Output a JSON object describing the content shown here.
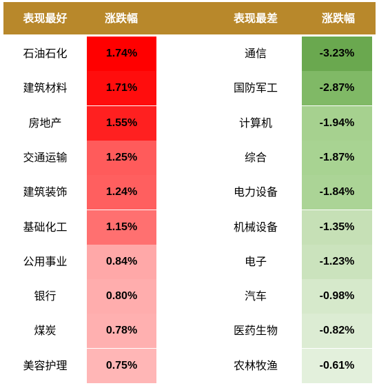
{
  "header": {
    "best_label": "表现最好",
    "best_change_label": "涨跌幅",
    "worst_label": "表现最差",
    "worst_change_label": "涨跌幅"
  },
  "best": [
    {
      "name": "石油石化",
      "change": "1.74%",
      "color": "#ff0000"
    },
    {
      "name": "建筑材料",
      "change": "1.71%",
      "color": "#ff0d0d"
    },
    {
      "name": "房地产",
      "change": "1.55%",
      "color": "#ff2020"
    },
    {
      "name": "交通运输",
      "change": "1.25%",
      "color": "#ff5b5b"
    },
    {
      "name": "建筑装饰",
      "change": "1.24%",
      "color": "#ff5f5f"
    },
    {
      "name": "基础化工",
      "change": "1.15%",
      "color": "#ff7070"
    },
    {
      "name": "公用事业",
      "change": "0.84%",
      "color": "#ffa8a8"
    },
    {
      "name": "银行",
      "change": "0.80%",
      "color": "#ffadad"
    },
    {
      "name": "煤炭",
      "change": "0.78%",
      "color": "#ffb0b0"
    },
    {
      "name": "美容护理",
      "change": "0.75%",
      "color": "#ffb6b6"
    }
  ],
  "worst": [
    {
      "name": "通信",
      "change": "-3.23%",
      "color": "#6aa84f"
    },
    {
      "name": "国防军工",
      "change": "-2.87%",
      "color": "#80b966"
    },
    {
      "name": "计算机",
      "change": "-1.94%",
      "color": "#a6d18f"
    },
    {
      "name": "综合",
      "change": "-1.87%",
      "color": "#a8d392"
    },
    {
      "name": "电力设备",
      "change": "-1.84%",
      "color": "#abd496"
    },
    {
      "name": "机械设备",
      "change": "-1.35%",
      "color": "#c6e0b6"
    },
    {
      "name": "电子",
      "change": "-1.23%",
      "color": "#cbe3bd"
    },
    {
      "name": "汽车",
      "change": "-0.98%",
      "color": "#d6e9cb"
    },
    {
      "name": "医药生物",
      "change": "-0.82%",
      "color": "#dcecd3"
    },
    {
      "name": "农林牧渔",
      "change": "-0.61%",
      "color": "#e3f0dc"
    }
  ]
}
